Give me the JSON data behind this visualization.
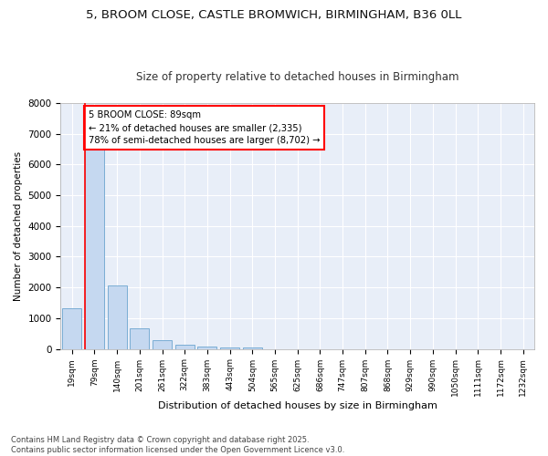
{
  "title_line1": "5, BROOM CLOSE, CASTLE BROMWICH, BIRMINGHAM, B36 0LL",
  "title_line2": "Size of property relative to detached houses in Birmingham",
  "xlabel": "Distribution of detached houses by size in Birmingham",
  "ylabel": "Number of detached properties",
  "footnote": "Contains HM Land Registry data © Crown copyright and database right 2025.\nContains public sector information licensed under the Open Government Licence v3.0.",
  "categories": [
    "19sqm",
    "79sqm",
    "140sqm",
    "201sqm",
    "261sqm",
    "322sqm",
    "383sqm",
    "443sqm",
    "504sqm",
    "565sqm",
    "625sqm",
    "686sqm",
    "747sqm",
    "807sqm",
    "868sqm",
    "929sqm",
    "990sqm",
    "1050sqm",
    "1111sqm",
    "1172sqm",
    "1232sqm"
  ],
  "values": [
    1320,
    6640,
    2080,
    670,
    295,
    145,
    80,
    45,
    55,
    0,
    0,
    0,
    0,
    0,
    0,
    0,
    0,
    0,
    0,
    0,
    0
  ],
  "bar_color": "#c5d8f0",
  "bar_edge_color": "#7aadd4",
  "property_line_color": "red",
  "annotation_text": "5 BROOM CLOSE: 89sqm\n← 21% of detached houses are smaller (2,335)\n78% of semi-detached houses are larger (8,702) →",
  "annotation_box_edgecolor": "red",
  "annotation_box_facecolor": "white",
  "ylim": [
    0,
    8000
  ],
  "yticks": [
    0,
    1000,
    2000,
    3000,
    4000,
    5000,
    6000,
    7000,
    8000
  ],
  "bg_color": "#ffffff",
  "plot_bg_color": "#e8eef8",
  "grid_color": "#ffffff",
  "title_fontsize": 9.5,
  "subtitle_fontsize": 8.5,
  "footnote_fontsize": 6.0
}
